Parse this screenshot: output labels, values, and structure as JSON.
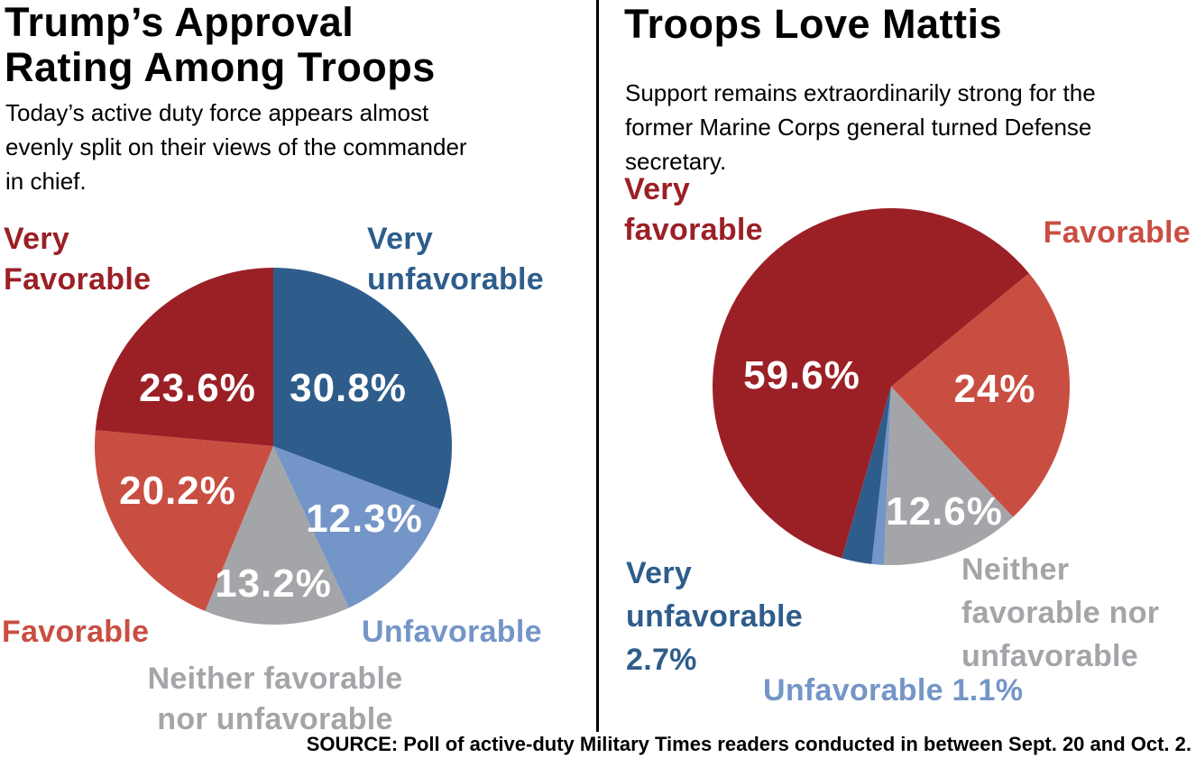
{
  "colors": {
    "very_favorable": "#9B2026",
    "favorable": "#C94E42",
    "neither": "#A3A5A8",
    "unfavorable": "#7495C7",
    "very_unfavorable": "#2E5D8C",
    "pct_label": "#FFFFFF",
    "divider": "#000000",
    "text": "#000000",
    "background": "#FFFFFF"
  },
  "source": "SOURCE: Poll of active-duty Military Times readers conducted in between Sept. 20 and Oct. 2.",
  "chart_data": [
    {
      "type": "pie",
      "title": "Trump’s Approval\nRating Among Troops",
      "subtitle": "Today’s active duty force appears almost\nevenly split on their views of the commander\nin chief.",
      "legend": "none",
      "direction": "clockwise",
      "start_angle_deg": 0,
      "categories": [
        "Very unfavorable",
        "Unfavorable",
        "Neither favorable nor unfavorable",
        "Favorable",
        "Very Favorable"
      ],
      "values": [
        30.8,
        12.3,
        13.2,
        20.2,
        23.6
      ],
      "slices": [
        {
          "name": "Very unfavorable",
          "value": 30.8,
          "label": "30.8%",
          "color": "very_unfavorable"
        },
        {
          "name": "Unfavorable",
          "value": 12.3,
          "label": "12.3%",
          "color": "unfavorable"
        },
        {
          "name": "Neither favorable nor unfavorable",
          "value": 13.2,
          "label": "13.2%",
          "color": "neither"
        },
        {
          "name": "Favorable",
          "value": 20.2,
          "label": "20.2%",
          "color": "favorable"
        },
        {
          "name": "Very Favorable",
          "value": 23.6,
          "label": "23.6%",
          "color": "very_favorable"
        }
      ],
      "callouts": {
        "very_favorable": "Very\nFavorable",
        "very_unfavorable": "Very\nunfavorable",
        "favorable": "Favorable",
        "unfavorable": "Unfavorable",
        "neither": "Neither favorable\nnor unfavorable"
      }
    },
    {
      "type": "pie",
      "title": "Troops Love Mattis",
      "subtitle": "Support remains extraordinarily strong for the\nformer Marine Corps general turned Defense\nsecretary.",
      "legend": "none",
      "direction": "clockwise",
      "start_angle_deg": 196,
      "categories": [
        "Very favorable",
        "Favorable",
        "Neither favorable nor unfavorable",
        "Unfavorable",
        "Very unfavorable"
      ],
      "values": [
        59.6,
        24,
        12.6,
        1.1,
        2.7
      ],
      "slices": [
        {
          "name": "Very favorable",
          "value": 59.6,
          "label": "59.6%",
          "color": "very_favorable"
        },
        {
          "name": "Favorable",
          "value": 24,
          "label": "24%",
          "color": "favorable"
        },
        {
          "name": "Neither favorable nor unfavorable",
          "value": 12.6,
          "label": "12.6%",
          "color": "neither"
        },
        {
          "name": "Unfavorable",
          "value": 1.1,
          "color": "unfavorable"
        },
        {
          "name": "Very unfavorable",
          "value": 2.7,
          "color": "very_unfavorable"
        }
      ],
      "callouts": {
        "very_favorable": "Very\nfavorable",
        "favorable": "Favorable",
        "very_unfavorable": "Very\nunfavorable\n2.7%",
        "neither": "Neither\nfavorable nor\nunfavorable",
        "unfavorable": "Unfavorable 1.1%"
      }
    }
  ]
}
